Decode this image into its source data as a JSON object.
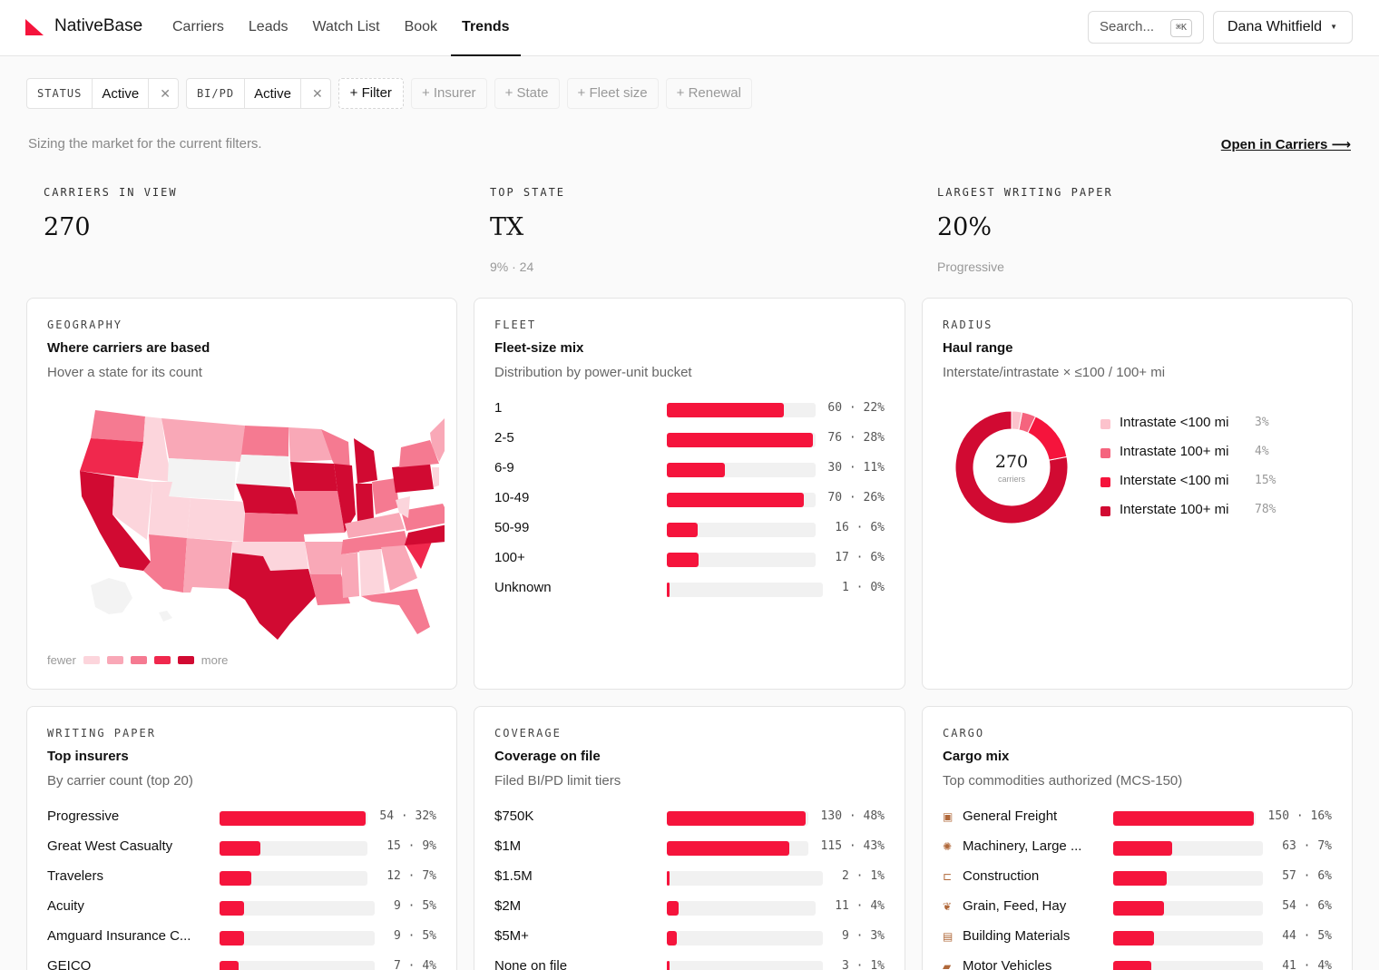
{
  "header": {
    "brand": "NativeBase",
    "nav": [
      "Carriers",
      "Leads",
      "Watch List",
      "Book",
      "Trends"
    ],
    "active_nav": "Trends",
    "search_placeholder": "Search...",
    "search_shortcut": "⌘K",
    "user_name": "Dana Whitfield"
  },
  "filters": {
    "chips": [
      {
        "key": "STATUS",
        "value": "Active"
      },
      {
        "key": "BI/PD",
        "value": "Active"
      }
    ],
    "add_label": "+ Filter",
    "options": [
      "+ Insurer",
      "+ State",
      "+ Fleet size",
      "+ Renewal"
    ]
  },
  "page": {
    "subtitle": "Sizing the market for the current filters.",
    "open_link": "Open in Carriers ⟶"
  },
  "kpis": [
    {
      "label": "CARRIERS IN VIEW",
      "value": "270",
      "sub": ""
    },
    {
      "label": "TOP STATE",
      "value": "TX",
      "sub": "9% · 24"
    },
    {
      "label": "LARGEST WRITING PAPER",
      "value": "20%",
      "sub": "Progressive"
    }
  ],
  "colors": {
    "accent": "#f5143c",
    "track": "#f1f1f1",
    "heat": [
      "#fcd5dc",
      "#f9a8b7",
      "#f57a91",
      "#f0284d",
      "#d10a32"
    ]
  },
  "geography": {
    "eyebrow": "GEOGRAPHY",
    "title": "Where carriers are based",
    "desc": "Hover a state for its count",
    "legend_fewer": "fewer",
    "legend_more": "more"
  },
  "fleet": {
    "eyebrow": "FLEET",
    "title": "Fleet-size mix",
    "desc": "Distribution by power-unit bucket",
    "rows": [
      {
        "label": "1",
        "count": 60,
        "pct": "22%",
        "share": 0.8
      },
      {
        "label": "2-5",
        "count": 76,
        "pct": "28%",
        "share": 1.0
      },
      {
        "label": "6-9",
        "count": 30,
        "pct": "11%",
        "share": 0.4
      },
      {
        "label": "10-49",
        "count": 70,
        "pct": "26%",
        "share": 0.94
      },
      {
        "label": "50-99",
        "count": 16,
        "pct": "6%",
        "share": 0.21
      },
      {
        "label": "100+",
        "count": 17,
        "pct": "6%",
        "share": 0.22
      },
      {
        "label": "Unknown",
        "count": 1,
        "pct": "0%",
        "share": 0.01
      }
    ]
  },
  "radius": {
    "eyebrow": "RADIUS",
    "title": "Haul range",
    "desc": "Interstate/intrastate × ≤100 / 100+ mi",
    "center_value": "270",
    "center_label": "carriers",
    "segments": [
      {
        "name": "Intrastate <100 mi",
        "pct": "3%",
        "value": 3,
        "color": "#fcc2cc"
      },
      {
        "name": "Intrastate 100+ mi",
        "pct": "4%",
        "value": 4,
        "color": "#f5647e"
      },
      {
        "name": "Interstate <100 mi",
        "pct": "15%",
        "value": 15,
        "color": "#f5143c"
      },
      {
        "name": "Interstate 100+ mi",
        "pct": "78%",
        "value": 78,
        "color": "#d10a32"
      }
    ]
  },
  "writing": {
    "eyebrow": "WRITING PAPER",
    "title": "Top insurers",
    "desc": "By carrier count (top 20)",
    "rows": [
      {
        "label": "Progressive",
        "count": 54,
        "pct": "32%",
        "share": 1.0
      },
      {
        "label": "Great West Casualty",
        "count": 15,
        "pct": "9%",
        "share": 0.28
      },
      {
        "label": "Travelers",
        "count": 12,
        "pct": "7%",
        "share": 0.22
      },
      {
        "label": "Acuity",
        "count": 9,
        "pct": "5%",
        "share": 0.17
      },
      {
        "label": "Amguard Insurance C...",
        "count": 9,
        "pct": "5%",
        "share": 0.17
      },
      {
        "label": "GEICO",
        "count": 7,
        "pct": "4%",
        "share": 0.13
      }
    ]
  },
  "coverage": {
    "eyebrow": "COVERAGE",
    "title": "Coverage on file",
    "desc": "Filed BI/PD limit tiers",
    "rows": [
      {
        "label": "$750K",
        "count": 130,
        "pct": "48%",
        "share": 1.0
      },
      {
        "label": "$1M",
        "count": 115,
        "pct": "43%",
        "share": 0.88
      },
      {
        "label": "$1.5M",
        "count": 2,
        "pct": "1%",
        "share": 0.015
      },
      {
        "label": "$2M",
        "count": 11,
        "pct": "4%",
        "share": 0.085
      },
      {
        "label": "$5M+",
        "count": 9,
        "pct": "3%",
        "share": 0.07
      },
      {
        "label": "None on file",
        "count": 3,
        "pct": "1%",
        "share": 0.02
      }
    ]
  },
  "cargo": {
    "eyebrow": "CARGO",
    "title": "Cargo mix",
    "desc": "Top commodities authorized (MCS-150)",
    "rows": [
      {
        "label": "General Freight",
        "icon": "package-icon",
        "glyph": "▣",
        "count": 150,
        "pct": "16%",
        "share": 1.0
      },
      {
        "label": "Machinery, Large ...",
        "icon": "gear-icon",
        "glyph": "✺",
        "count": 63,
        "pct": "7%",
        "share": 0.42
      },
      {
        "label": "Construction",
        "icon": "crane-icon",
        "glyph": "⊏",
        "count": 57,
        "pct": "6%",
        "share": 0.38
      },
      {
        "label": "Grain, Feed, Hay",
        "icon": "wheat-icon",
        "glyph": "❦",
        "count": 54,
        "pct": "6%",
        "share": 0.36
      },
      {
        "label": "Building Materials",
        "icon": "bricks-icon",
        "glyph": "▤",
        "count": 44,
        "pct": "5%",
        "share": 0.29
      },
      {
        "label": "Motor Vehicles",
        "icon": "car-icon",
        "glyph": "▰",
        "count": 41,
        "pct": "4%",
        "share": 0.27
      }
    ]
  }
}
